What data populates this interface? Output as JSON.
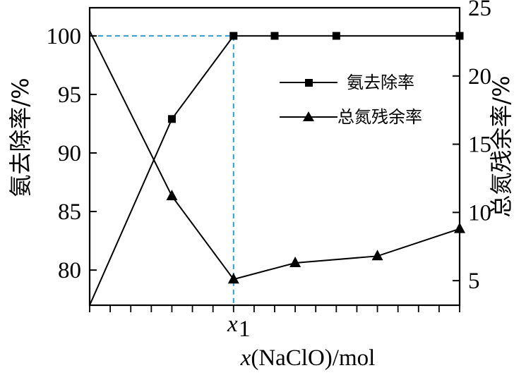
{
  "chart_data": {
    "type": "line",
    "xlabel_var": "x",
    "xlabel_rest": "(NaClO)/mol",
    "x_marker_label": "x",
    "x_marker_sub": "1",
    "ylabel_left": "氨去除率/%",
    "ylabel_right": "总氮残余率/%",
    "left_axis": {
      "ylim": [
        77.0,
        102.4
      ],
      "ticks": [
        80,
        85,
        90,
        95,
        100
      ]
    },
    "right_axis": {
      "ylim": [
        3.2,
        25.0
      ],
      "ticks": [
        5,
        10,
        15,
        20,
        25
      ]
    },
    "x": [
      0,
      4,
      7,
      9,
      12,
      14,
      18
    ],
    "xlim": [
      0,
      18
    ],
    "x_minor_ticks": 18,
    "reference": {
      "x": 7,
      "y_left": 100
    },
    "series": [
      {
        "name": "氨去除率",
        "axis": "left",
        "marker": "square",
        "x": [
          0,
          4,
          7,
          9,
          12,
          18
        ],
        "values": [
          77.0,
          92.9,
          100,
          100,
          100,
          100
        ]
      },
      {
        "name": "总氮残余率",
        "axis": "right",
        "marker": "triangle",
        "x": [
          0,
          4,
          7,
          10,
          14,
          18
        ],
        "values": [
          23.3,
          11.2,
          5.1,
          6.3,
          6.8,
          8.8
        ]
      }
    ],
    "colors": {
      "line": "#000000",
      "reference": "#2a9fd6"
    },
    "legend_position": "upper-right"
  }
}
